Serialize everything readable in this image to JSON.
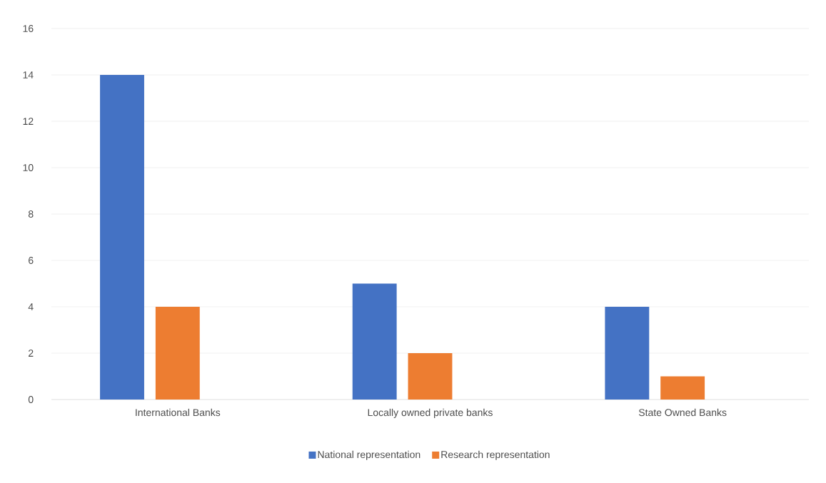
{
  "chart_data": {
    "type": "bar",
    "categories": [
      "International Banks",
      "Locally owned private banks",
      "State Owned Banks"
    ],
    "series": [
      {
        "name": "National representation",
        "color": "#4472c4",
        "values": [
          14,
          5,
          4
        ]
      },
      {
        "name": "Research representation",
        "color": "#ed7d31",
        "values": [
          4,
          2,
          1
        ]
      }
    ],
    "ylim": [
      0,
      16
    ],
    "yticks": [
      0,
      2,
      4,
      6,
      8,
      10,
      12,
      14,
      16
    ],
    "grid": "y",
    "legend": "bottom"
  }
}
